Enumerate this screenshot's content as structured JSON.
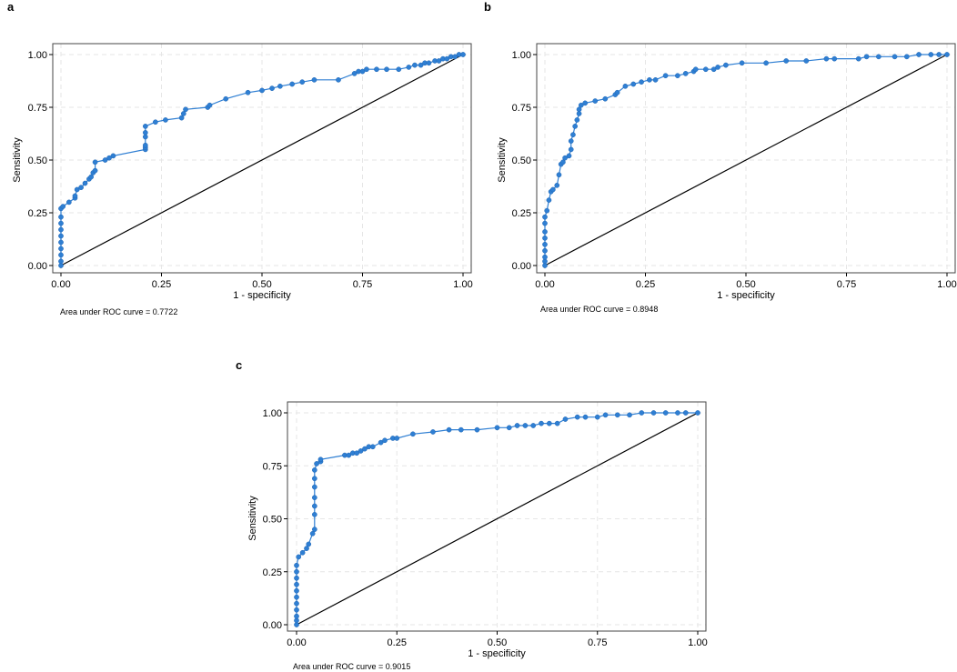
{
  "colors": {
    "curve": "#2f7fd3",
    "reference": "#000000",
    "grid": "#e6e6e6"
  },
  "chart_data": [
    {
      "panel": "a",
      "type": "line",
      "title": "",
      "xlabel": "1 - specificity",
      "ylabel": "Sensitivity",
      "xlim": [
        0,
        1
      ],
      "ylim": [
        0,
        1
      ],
      "xticks": [
        "0.00",
        "0.25",
        "0.50",
        "0.75",
        "1.00"
      ],
      "yticks": [
        "0.00",
        "0.25",
        "0.50",
        "0.75",
        "1.00"
      ],
      "grid": true,
      "note": "Area under ROC curve = 0.7722",
      "reference_line": [
        [
          0,
          0
        ],
        [
          1,
          1
        ]
      ],
      "series": [
        {
          "name": "ROC",
          "x": [
            0,
            0,
            0,
            0,
            0,
            0,
            0,
            0,
            0,
            0,
            0.005,
            0.02,
            0.035,
            0.035,
            0.04,
            0.05,
            0.06,
            0.07,
            0.075,
            0.08,
            0.085,
            0.085,
            0.11,
            0.12,
            0.13,
            0.21,
            0.21,
            0.21,
            0.21,
            0.21,
            0.21,
            0.235,
            0.26,
            0.3,
            0.305,
            0.31,
            0.365,
            0.37,
            0.41,
            0.465,
            0.5,
            0.525,
            0.545,
            0.575,
            0.6,
            0.63,
            0.69,
            0.73,
            0.74,
            0.75,
            0.76,
            0.785,
            0.81,
            0.84,
            0.865,
            0.88,
            0.895,
            0.905,
            0.915,
            0.93,
            0.94,
            0.95,
            0.96,
            0.97,
            0.98,
            0.99,
            1.0
          ],
          "y": [
            0,
            0.02,
            0.05,
            0.08,
            0.11,
            0.14,
            0.17,
            0.2,
            0.23,
            0.27,
            0.28,
            0.3,
            0.32,
            0.33,
            0.36,
            0.37,
            0.39,
            0.41,
            0.42,
            0.44,
            0.45,
            0.49,
            0.5,
            0.51,
            0.52,
            0.55,
            0.56,
            0.57,
            0.61,
            0.63,
            0.66,
            0.68,
            0.69,
            0.7,
            0.72,
            0.74,
            0.75,
            0.76,
            0.79,
            0.82,
            0.83,
            0.84,
            0.85,
            0.86,
            0.87,
            0.88,
            0.88,
            0.91,
            0.92,
            0.92,
            0.93,
            0.93,
            0.93,
            0.93,
            0.94,
            0.95,
            0.95,
            0.96,
            0.96,
            0.97,
            0.97,
            0.98,
            0.98,
            0.99,
            0.99,
            1.0,
            1.0
          ]
        }
      ]
    },
    {
      "panel": "b",
      "type": "line",
      "title": "",
      "xlabel": "1 - specificity",
      "ylabel": "Sensitivity",
      "xlim": [
        0,
        1
      ],
      "ylim": [
        0,
        1
      ],
      "xticks": [
        "0.00",
        "0.25",
        "0.50",
        "0.75",
        "1.00"
      ],
      "yticks": [
        "0.00",
        "0.25",
        "0.50",
        "0.75",
        "1.00"
      ],
      "grid": true,
      "note": "Area under ROC curve = 0.8948",
      "reference_line": [
        [
          0,
          0
        ],
        [
          1,
          1
        ]
      ],
      "series": [
        {
          "name": "ROC",
          "x": [
            0,
            0,
            0,
            0,
            0,
            0,
            0,
            0,
            0,
            0.005,
            0.01,
            0.015,
            0.02,
            0.03,
            0.035,
            0.04,
            0.045,
            0.05,
            0.06,
            0.065,
            0.065,
            0.07,
            0.075,
            0.08,
            0.085,
            0.085,
            0.09,
            0.1,
            0.125,
            0.15,
            0.175,
            0.18,
            0.2,
            0.22,
            0.24,
            0.26,
            0.275,
            0.3,
            0.33,
            0.35,
            0.37,
            0.375,
            0.4,
            0.42,
            0.43,
            0.45,
            0.49,
            0.55,
            0.6,
            0.65,
            0.7,
            0.72,
            0.78,
            0.8,
            0.83,
            0.87,
            0.9,
            0.93,
            0.96,
            0.98,
            1.0
          ],
          "y": [
            0,
            0.02,
            0.04,
            0.07,
            0.1,
            0.13,
            0.16,
            0.2,
            0.23,
            0.26,
            0.31,
            0.35,
            0.36,
            0.38,
            0.43,
            0.48,
            0.49,
            0.51,
            0.52,
            0.55,
            0.59,
            0.62,
            0.66,
            0.69,
            0.72,
            0.74,
            0.76,
            0.77,
            0.78,
            0.79,
            0.81,
            0.82,
            0.85,
            0.86,
            0.87,
            0.88,
            0.88,
            0.9,
            0.9,
            0.91,
            0.92,
            0.93,
            0.93,
            0.93,
            0.94,
            0.95,
            0.96,
            0.96,
            0.97,
            0.97,
            0.98,
            0.98,
            0.98,
            0.99,
            0.99,
            0.99,
            0.99,
            1.0,
            1.0,
            1.0,
            1.0
          ]
        }
      ]
    },
    {
      "panel": "c",
      "type": "line",
      "title": "",
      "xlabel": "1 - specificity",
      "ylabel": "Sensitivity",
      "xlim": [
        0,
        1
      ],
      "ylim": [
        0,
        1
      ],
      "xticks": [
        "0.00",
        "0.25",
        "0.50",
        "0.75",
        "1.00"
      ],
      "yticks": [
        "0.00",
        "0.25",
        "0.50",
        "0.75",
        "1.00"
      ],
      "grid": true,
      "note": "Area under ROC curve = 0.9015",
      "reference_line": [
        [
          0,
          0
        ],
        [
          1,
          1
        ]
      ],
      "series": [
        {
          "name": "ROC",
          "x": [
            0,
            0,
            0,
            0,
            0,
            0,
            0,
            0,
            0,
            0,
            0,
            0.005,
            0.015,
            0.025,
            0.03,
            0.04,
            0.045,
            0.045,
            0.045,
            0.045,
            0.045,
            0.045,
            0.045,
            0.05,
            0.06,
            0.06,
            0.12,
            0.13,
            0.14,
            0.15,
            0.16,
            0.17,
            0.18,
            0.19,
            0.21,
            0.22,
            0.24,
            0.25,
            0.29,
            0.34,
            0.38,
            0.41,
            0.45,
            0.5,
            0.53,
            0.55,
            0.57,
            0.59,
            0.61,
            0.63,
            0.65,
            0.67,
            0.7,
            0.72,
            0.75,
            0.77,
            0.8,
            0.83,
            0.86,
            0.89,
            0.92,
            0.95,
            0.97,
            1.0
          ],
          "y": [
            0,
            0.02,
            0.04,
            0.07,
            0.1,
            0.13,
            0.16,
            0.19,
            0.22,
            0.25,
            0.28,
            0.32,
            0.34,
            0.36,
            0.38,
            0.43,
            0.45,
            0.52,
            0.56,
            0.6,
            0.65,
            0.69,
            0.73,
            0.76,
            0.77,
            0.78,
            0.8,
            0.8,
            0.81,
            0.81,
            0.82,
            0.83,
            0.84,
            0.84,
            0.86,
            0.87,
            0.88,
            0.88,
            0.9,
            0.91,
            0.92,
            0.92,
            0.92,
            0.93,
            0.93,
            0.94,
            0.94,
            0.94,
            0.95,
            0.95,
            0.95,
            0.97,
            0.98,
            0.98,
            0.98,
            0.99,
            0.99,
            0.99,
            1.0,
            1.0,
            1.0,
            1.0,
            1.0,
            1.0
          ]
        }
      ]
    }
  ]
}
